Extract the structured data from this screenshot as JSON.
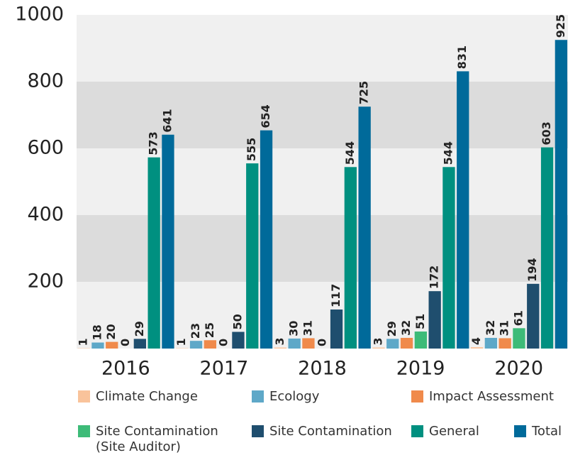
{
  "chart_data": {
    "type": "bar",
    "categories": [
      "2016",
      "2017",
      "2018",
      "2019",
      "2020"
    ],
    "series": [
      {
        "name": "Climate Change",
        "color": "#f9c39b",
        "values": [
          1,
          1,
          3,
          3,
          4
        ]
      },
      {
        "name": "Ecology",
        "color": "#5ea8c8",
        "values": [
          18,
          23,
          30,
          29,
          32
        ]
      },
      {
        "name": "Impact Assessment",
        "color": "#f08a4b",
        "values": [
          20,
          25,
          31,
          32,
          31
        ]
      },
      {
        "name": "Site Contamination (Site Auditor)",
        "color": "#3dbb78",
        "values": [
          0,
          0,
          0,
          51,
          61
        ]
      },
      {
        "name": "Site Contamination",
        "color": "#1f4e6e",
        "values": [
          29,
          50,
          117,
          172,
          194
        ]
      },
      {
        "name": "General",
        "color": "#009080",
        "values": [
          573,
          555,
          544,
          544,
          603
        ]
      },
      {
        "name": "Total",
        "color": "#006a9a",
        "values": [
          641,
          654,
          725,
          831,
          925
        ]
      }
    ],
    "ylim": [
      0,
      1000
    ],
    "yticks": [
      200,
      400,
      600,
      800,
      1000
    ],
    "grid": true
  }
}
